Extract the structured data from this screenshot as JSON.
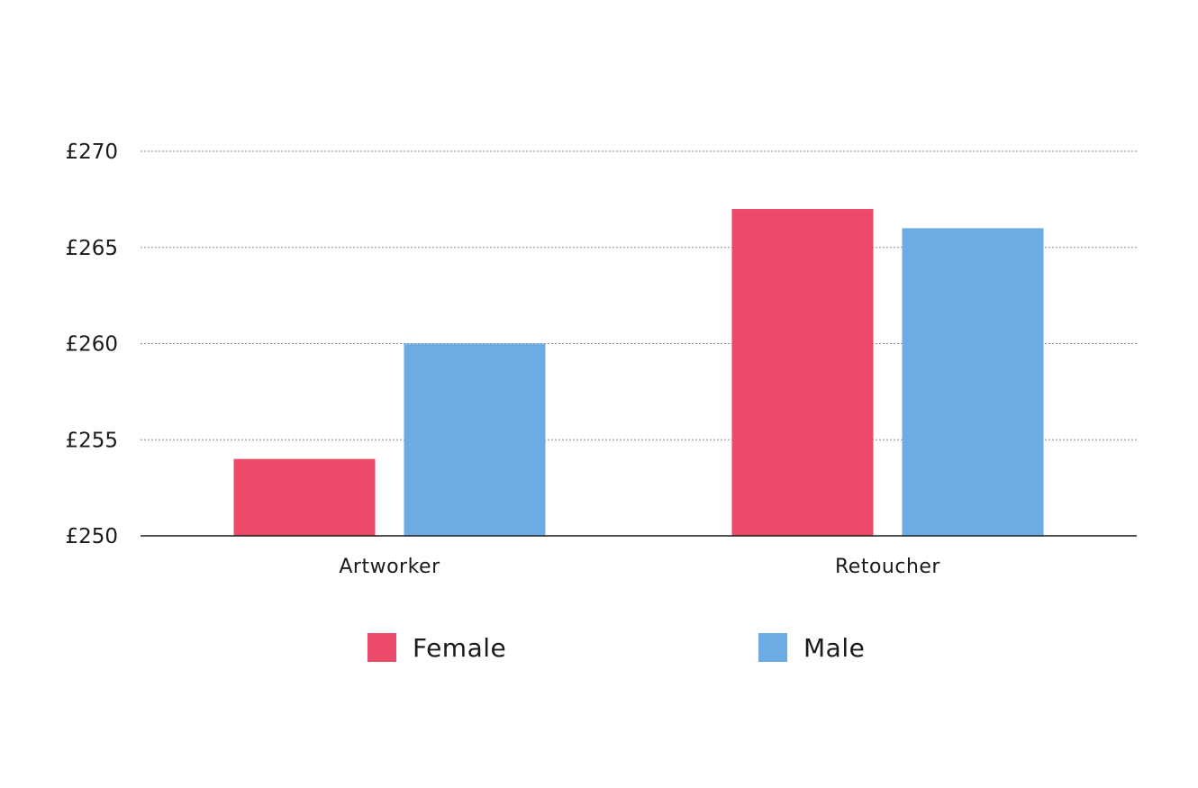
{
  "chart_data": {
    "type": "bar",
    "title": "",
    "xlabel": "",
    "ylabel": "",
    "categories": [
      "Artworker",
      "Retoucher"
    ],
    "series": [
      {
        "name": "Female",
        "color": "#ec4a69",
        "values": [
          254,
          267
        ]
      },
      {
        "name": "Male",
        "color": "#6cabe3",
        "values": [
          260,
          266
        ]
      }
    ],
    "ylim": [
      250,
      270
    ],
    "yticks": [
      250,
      255,
      260,
      265,
      270
    ],
    "ytick_labels": [
      "£250",
      "£255",
      "£260",
      "£265",
      "£270"
    ],
    "grid": true,
    "grid_style": "dotted",
    "legend_position": "bottom"
  }
}
